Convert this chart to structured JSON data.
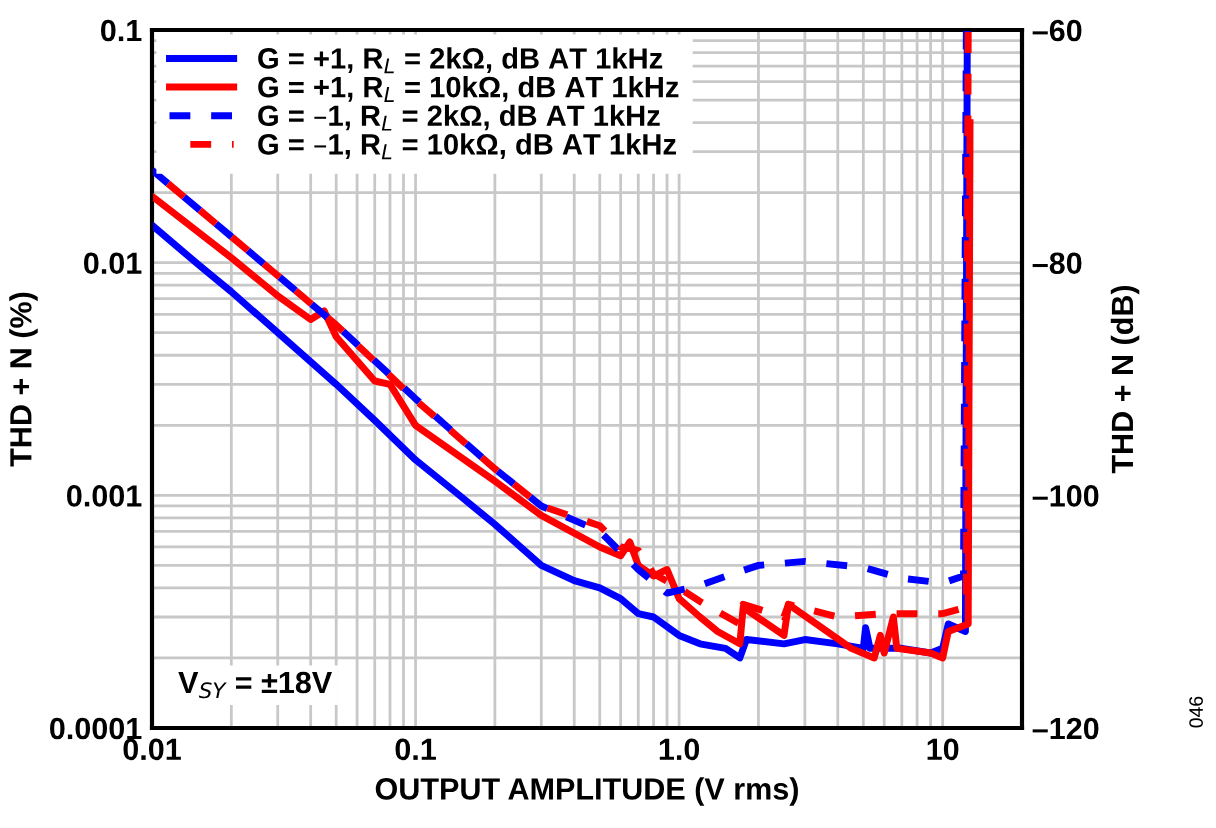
{
  "chart_data": {
    "type": "line",
    "xlabel": "OUTPUT AMPLITUDE (V rms)",
    "ylabel": "THD + N (%)",
    "y2label": "THD + N (dB)",
    "log": "xy",
    "grid": true,
    "legend": "top left",
    "xlim": [
      0.01,
      20
    ],
    "xticks": [
      0.01,
      0.1,
      {
        "value": 1,
        "label": "1.0"
      },
      10
    ],
    "ylim": [
      0.0001,
      0.1
    ],
    "yticks": [
      0.0001,
      0.001,
      0.01,
      0.1
    ],
    "y2lim": [
      -120,
      -60
    ],
    "y2ticks": [
      {
        "value": -120,
        "label": "–120"
      },
      {
        "value": -100,
        "label": "–100"
      },
      {
        "value": -80,
        "label": "–80"
      },
      {
        "value": -60,
        "label": "–60"
      }
    ],
    "annotations": [
      "V$_{SY}$ = ±18V",
      "046"
    ],
    "series": [
      {
        "name": "G = +1, R$_{L}$ = 2kΩ, dB AT 1kHz",
        "color": "#0000ff",
        "line_style": "solid",
        "x": [
          0.01,
          0.015,
          0.02,
          0.03,
          0.05,
          0.07,
          0.1,
          0.15,
          0.2,
          0.3,
          0.4,
          0.5,
          0.6,
          0.7,
          0.8,
          1.0,
          1.2,
          1.5,
          1.7,
          1.8,
          2.5,
          3,
          4,
          5,
          5.1,
          5.3,
          7,
          9,
          10,
          10.5,
          12.2,
          12.4
        ],
        "values": [
          0.0145,
          0.0098,
          0.0075,
          0.005,
          0.003,
          0.0021,
          0.00142,
          0.00098,
          0.00075,
          0.0005,
          0.00043,
          0.0004,
          0.00036,
          0.00031,
          0.0003,
          0.00025,
          0.00023,
          0.00022,
          0.0002,
          0.00024,
          0.00023,
          0.00024,
          0.00023,
          0.00022,
          0.00027,
          0.00022,
          0.00022,
          0.00021,
          0.00022,
          0.00028,
          0.00026,
          0.1
        ]
      },
      {
        "name": "G = +1, R$_{L}$ = 10kΩ, dB AT 1kHz",
        "color": "#ff0000",
        "line_style": "solid",
        "x": [
          0.01,
          0.02,
          0.03,
          0.04,
          0.045,
          0.05,
          0.07,
          0.08,
          0.1,
          0.2,
          0.3,
          0.5,
          0.6,
          0.65,
          0.7,
          0.8,
          0.9,
          1.0,
          1.2,
          1.4,
          1.7,
          1.75,
          2.5,
          2.6,
          4.5,
          5.5,
          5.8,
          6,
          6.5,
          6.7,
          9,
          10,
          10.5,
          12.5,
          12.7
        ],
        "values": [
          0.0193,
          0.0105,
          0.0072,
          0.0057,
          0.0062,
          0.0048,
          0.0031,
          0.003,
          0.002,
          0.00115,
          0.00082,
          0.0006,
          0.00055,
          0.00063,
          0.0005,
          0.00045,
          0.00048,
          0.00036,
          0.0003,
          0.00026,
          0.00023,
          0.00033,
          0.00025,
          0.00034,
          0.00022,
          0.0002,
          0.00025,
          0.00021,
          0.0003,
          0.00022,
          0.00021,
          0.0002,
          0.00026,
          0.00028,
          0.04
        ]
      },
      {
        "name": "G = –1, R$_{L}$ = 2kΩ, dB AT 1kHz",
        "color": "#0000ff",
        "line_style": "dashed",
        "x": [
          0.01,
          0.03,
          0.05,
          0.1,
          0.2,
          0.3,
          0.5,
          0.7,
          0.9,
          1.2,
          1.6,
          2,
          3,
          5,
          7,
          10,
          12,
          12.3
        ],
        "values": [
          0.025,
          0.0088,
          0.0054,
          0.0026,
          0.0013,
          0.0009,
          0.0007,
          0.00048,
          0.00038,
          0.00041,
          0.00046,
          0.0005,
          0.00052,
          0.00049,
          0.00044,
          0.00042,
          0.00045,
          0.1
        ]
      },
      {
        "name": "G = –1, R$_{L}$ = 10kΩ, dB AT 1kHz",
        "color": "#ff0000",
        "line_style": "dashed",
        "x": [
          0.01,
          0.03,
          0.05,
          0.1,
          0.2,
          0.3,
          0.5,
          0.6,
          0.7,
          0.8,
          1.0,
          1.2,
          1.7,
          1.75,
          2.5,
          2.6,
          4,
          6,
          10,
          12.3,
          12.5
        ],
        "values": [
          0.025,
          0.0088,
          0.0054,
          0.00257,
          0.0013,
          0.0009,
          0.00074,
          0.0006,
          0.00058,
          0.00046,
          0.0004,
          0.00035,
          0.00028,
          0.00034,
          0.0003,
          0.00034,
          0.0003,
          0.00031,
          0.00031,
          0.00033,
          0.1
        ]
      }
    ]
  }
}
